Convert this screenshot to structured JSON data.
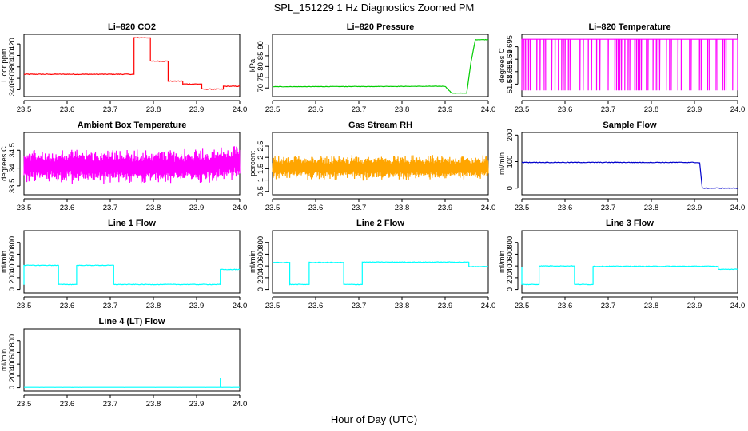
{
  "page": {
    "title": "SPL_151229  1 Hz Diagnostics Zoomed PM",
    "xlabel": "Hour of Day (UTC)"
  },
  "chart_data": [
    {
      "type": "line",
      "title": "Li–820 CO2",
      "ylabel": "Licor ppm",
      "color": "#ff0000",
      "xlim": [
        23.5,
        24.0
      ],
      "xticks": [
        23.5,
        23.6,
        23.7,
        23.8,
        23.9,
        24.0
      ],
      "ylim": [
        328,
        437
      ],
      "yticks": [
        340,
        360,
        380,
        400,
        420
      ],
      "series": [
        {
          "name": "CO2",
          "noise": 0.6,
          "x": [
            23.5,
            23.755,
            23.755,
            23.793,
            23.793,
            23.834,
            23.834,
            23.868,
            23.868,
            23.912,
            23.912,
            23.962,
            23.962,
            24.0
          ],
          "y": [
            367,
            367,
            431,
            431,
            390,
            390,
            355,
            355,
            350,
            350,
            341,
            341,
            346,
            346
          ]
        }
      ]
    },
    {
      "type": "line",
      "title": "Li–820 Pressure",
      "ylabel": "kPa",
      "color": "#00cc00",
      "xlim": [
        23.5,
        24.0
      ],
      "xticks": [
        23.5,
        23.6,
        23.7,
        23.8,
        23.9,
        24.0
      ],
      "ylim": [
        66,
        95
      ],
      "yticks": [
        70,
        75,
        80,
        85,
        90
      ],
      "series": [
        {
          "name": "Pressure",
          "noise": 0.1,
          "x": [
            23.5,
            23.9,
            23.915,
            23.95,
            23.96,
            23.97,
            24.0
          ],
          "y": [
            70.6,
            70.8,
            67.6,
            67.6,
            82,
            92.5,
            92.5
          ]
        }
      ]
    },
    {
      "type": "line",
      "title": "Li–820 Temperature",
      "ylabel": "degrees C",
      "color": "#ff00ff",
      "xlim": [
        23.5,
        24.0
      ],
      "xticks": [
        23.5,
        23.6,
        23.7,
        23.8,
        23.9,
        24.0
      ],
      "ylim": [
        51.675,
        51.7
      ],
      "yticks": [
        51.68,
        51.685,
        51.69,
        51.695
      ],
      "series": [
        {
          "name": "Temperature",
          "pattern": "spikes",
          "base": 51.698,
          "low": 51.6775
        }
      ]
    },
    {
      "type": "line",
      "title": "Ambient Box Temperature",
      "ylabel": "degrees C",
      "color": "#ff00ff",
      "xlim": [
        23.5,
        24.0
      ],
      "xticks": [
        23.5,
        23.6,
        23.7,
        23.8,
        23.9,
        24.0
      ],
      "ylim": [
        33.25,
        35.0
      ],
      "yticks": [
        33.5,
        34.0,
        34.5
      ],
      "series": [
        {
          "name": "Ambient",
          "pattern": "band",
          "center": 34.05,
          "amp": 0.4,
          "x_end_rise": 34.15
        }
      ]
    },
    {
      "type": "line",
      "title": "Gas Stream RH",
      "ylabel": "percent",
      "color": "#ffa500",
      "xlim": [
        23.5,
        24.0
      ],
      "xticks": [
        23.5,
        23.6,
        23.7,
        23.8,
        23.9,
        24.0
      ],
      "ylim": [
        0.35,
        3.1
      ],
      "yticks": [
        0.5,
        1.0,
        1.5,
        2.0,
        2.5
      ],
      "series": [
        {
          "name": "RH",
          "pattern": "band",
          "center": 1.55,
          "amp": 0.45
        }
      ]
    },
    {
      "type": "line",
      "title": "Sample Flow",
      "ylabel": "ml/min",
      "color": "#0000cc",
      "xlim": [
        23.5,
        24.0
      ],
      "xticks": [
        23.5,
        23.6,
        23.7,
        23.8,
        23.9,
        24.0
      ],
      "ylim": [
        -25,
        210
      ],
      "yticks": [
        0,
        100,
        200
      ],
      "series": [
        {
          "name": "Sample Flow",
          "noise": 1.2,
          "x": [
            23.5,
            23.9,
            23.912,
            23.918,
            24.0
          ],
          "y": [
            97,
            97,
            95,
            0,
            0
          ]
        }
      ]
    },
    {
      "type": "line",
      "title": "Line 1 Flow",
      "ylabel": "ml/min",
      "color": "#00ffff",
      "xlim": [
        23.5,
        24.0
      ],
      "xticks": [
        23.5,
        23.6,
        23.7,
        23.8,
        23.9,
        24.0
      ],
      "ylim": [
        -60,
        1000
      ],
      "yticks": [
        0,
        200,
        400,
        600,
        800
      ],
      "series": [
        {
          "name": "Line 1",
          "noise": 5,
          "x": [
            23.5,
            23.5,
            23.58,
            23.58,
            23.622,
            23.622,
            23.708,
            23.708,
            23.955,
            23.955,
            24.0
          ],
          "y": [
            80,
            410,
            410,
            85,
            85,
            410,
            410,
            85,
            85,
            340,
            340
          ]
        }
      ]
    },
    {
      "type": "line",
      "title": "Line 2 Flow",
      "ylabel": "ml/min",
      "color": "#00ffff",
      "xlim": [
        23.5,
        24.0
      ],
      "xticks": [
        23.5,
        23.6,
        23.7,
        23.8,
        23.9,
        24.0
      ],
      "ylim": [
        -60,
        1000
      ],
      "yticks": [
        0,
        200,
        400,
        600,
        800
      ],
      "series": [
        {
          "name": "Line 2",
          "noise": 5,
          "x": [
            23.5,
            23.54,
            23.54,
            23.585,
            23.585,
            23.665,
            23.665,
            23.708,
            23.708,
            23.955,
            23.955,
            24.0
          ],
          "y": [
            460,
            460,
            85,
            85,
            460,
            460,
            85,
            85,
            465,
            465,
            390,
            390
          ]
        }
      ]
    },
    {
      "type": "line",
      "title": "Line 3 Flow",
      "ylabel": "ml/min",
      "color": "#00ffff",
      "xlim": [
        23.5,
        24.0
      ],
      "xticks": [
        23.5,
        23.6,
        23.7,
        23.8,
        23.9,
        24.0
      ],
      "ylim": [
        -60,
        1000
      ],
      "yticks": [
        0,
        200,
        400,
        600,
        800
      ],
      "series": [
        {
          "name": "Line 3",
          "noise": 5,
          "x": [
            23.5,
            23.5,
            23.54,
            23.54,
            23.622,
            23.622,
            23.665,
            23.665,
            23.955,
            23.955,
            24.0
          ],
          "y": [
            380,
            85,
            85,
            400,
            400,
            85,
            85,
            395,
            395,
            345,
            345
          ]
        }
      ]
    },
    {
      "type": "line",
      "title": "Line 4 (LT) Flow",
      "ylabel": "ml/min",
      "color": "#00ffff",
      "xlim": [
        23.5,
        24.0
      ],
      "xticks": [
        23.5,
        23.6,
        23.7,
        23.8,
        23.9,
        24.0
      ],
      "ylim": [
        -60,
        1000
      ],
      "yticks": [
        0,
        200,
        400,
        600,
        800
      ],
      "series": [
        {
          "name": "Line 4",
          "noise": 0.5,
          "x": [
            23.5,
            23.955,
            23.955,
            23.956,
            23.956,
            24.0
          ],
          "y": [
            5,
            5,
            150,
            150,
            5,
            5
          ]
        }
      ]
    }
  ]
}
